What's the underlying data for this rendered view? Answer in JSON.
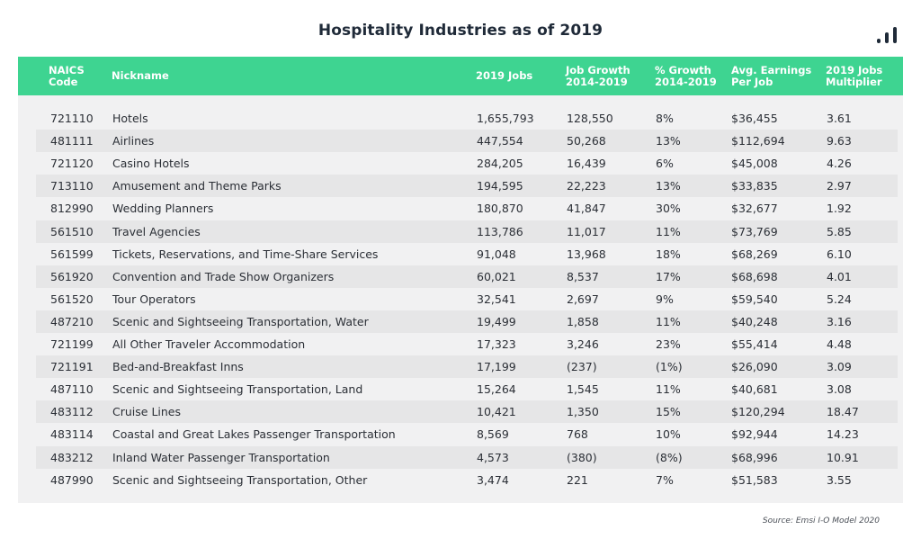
{
  "title": "Hospitality Industries as of 2019",
  "source": "Source: Emsi I-O Model 2020",
  "colors": {
    "header": "#3ed491",
    "panel": "#f1f1f2",
    "stripe": "#e6e6e7"
  },
  "logo_icon": "bar-chart-logo-icon",
  "columns": [
    {
      "key": "code",
      "label": "NAICS\nCode"
    },
    {
      "key": "nickname",
      "label": "Nickname"
    },
    {
      "key": "jobs",
      "label": "2019 Jobs"
    },
    {
      "key": "growth",
      "label": "Job Growth\n2014-2019"
    },
    {
      "key": "pct",
      "label": "% Growth\n2014-2019"
    },
    {
      "key": "earnings",
      "label": "Avg. Earnings\nPer Job"
    },
    {
      "key": "multiplier",
      "label": "2019 Jobs\nMultiplier"
    }
  ],
  "rows": [
    {
      "code": "721110",
      "nickname": "Hotels",
      "jobs": "1,655,793",
      "growth": "128,550",
      "pct": "8%",
      "earnings": "$36,455",
      "multiplier": "3.61"
    },
    {
      "code": "481111",
      "nickname": "Airlines",
      "jobs": "447,554",
      "growth": "50,268",
      "pct": "13%",
      "earnings": "$112,694",
      "multiplier": "9.63"
    },
    {
      "code": "721120",
      "nickname": "Casino Hotels",
      "jobs": "284,205",
      "growth": "16,439",
      "pct": "6%",
      "earnings": "$45,008",
      "multiplier": "4.26"
    },
    {
      "code": "713110",
      "nickname": "Amusement and Theme Parks",
      "jobs": "194,595",
      "growth": "22,223",
      "pct": "13%",
      "earnings": "$33,835",
      "multiplier": "2.97"
    },
    {
      "code": "812990",
      "nickname": "Wedding Planners",
      "jobs": "180,870",
      "growth": "41,847",
      "pct": "30%",
      "earnings": "$32,677",
      "multiplier": "1.92"
    },
    {
      "code": "561510",
      "nickname": "Travel Agencies",
      "jobs": "113,786",
      "growth": "11,017",
      "pct": "11%",
      "earnings": "$73,769",
      "multiplier": "5.85"
    },
    {
      "code": "561599",
      "nickname": "Tickets, Reservations, and Time-Share Services",
      "jobs": "91,048",
      "growth": "13,968",
      "pct": "18%",
      "earnings": "$68,269",
      "multiplier": "6.10"
    },
    {
      "code": "561920",
      "nickname": "Convention and Trade Show Organizers",
      "jobs": "60,021",
      "growth": "8,537",
      "pct": "17%",
      "earnings": "$68,698",
      "multiplier": "4.01"
    },
    {
      "code": "561520",
      "nickname": "Tour Operators",
      "jobs": "32,541",
      "growth": "2,697",
      "pct": "9%",
      "earnings": "$59,540",
      "multiplier": "5.24"
    },
    {
      "code": "487210",
      "nickname": "Scenic and Sightseeing Transportation, Water",
      "jobs": "19,499",
      "growth": "1,858",
      "pct": "11%",
      "earnings": "$40,248",
      "multiplier": "3.16"
    },
    {
      "code": "721199",
      "nickname": "All Other Traveler Accommodation",
      "jobs": "17,323",
      "growth": "3,246",
      "pct": "23%",
      "earnings": "$55,414",
      "multiplier": "4.48"
    },
    {
      "code": "721191",
      "nickname": "Bed-and-Breakfast Inns",
      "jobs": "17,199",
      "growth": "(237)",
      "pct": "(1%)",
      "earnings": "$26,090",
      "multiplier": "3.09"
    },
    {
      "code": "487110",
      "nickname": "Scenic and Sightseeing Transportation, Land",
      "jobs": "15,264",
      "growth": "1,545",
      "pct": "11%",
      "earnings": "$40,681",
      "multiplier": "3.08"
    },
    {
      "code": "483112",
      "nickname": "Cruise Lines",
      "jobs": "10,421",
      "growth": "1,350",
      "pct": "15%",
      "earnings": "$120,294",
      "multiplier": "18.47"
    },
    {
      "code": "483114",
      "nickname": "Coastal and Great Lakes Passenger Transportation",
      "jobs": "8,569",
      "growth": "768",
      "pct": "10%",
      "earnings": "$92,944",
      "multiplier": "14.23"
    },
    {
      "code": "483212",
      "nickname": "Inland Water Passenger Transportation",
      "jobs": "4,573",
      "growth": "(380)",
      "pct": "(8%)",
      "earnings": "$68,996",
      "multiplier": "10.91"
    },
    {
      "code": "487990",
      "nickname": "Scenic and Sightseeing Transportation, Other",
      "jobs": "3,474",
      "growth": "221",
      "pct": "7%",
      "earnings": "$51,583",
      "multiplier": "3.55"
    }
  ]
}
